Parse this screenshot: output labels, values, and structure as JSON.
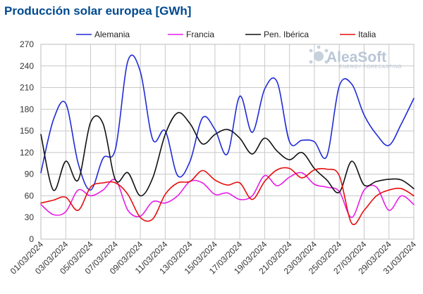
{
  "title": "Producción solar europea [GWh]",
  "logo": {
    "name": "AleaSoft",
    "tagline": "ENERGY FORECASTING"
  },
  "chart_data": {
    "type": "line",
    "x": [
      "01/03/2024",
      "02/03/2024",
      "03/03/2024",
      "04/03/2024",
      "05/03/2024",
      "06/03/2024",
      "07/03/2024",
      "08/03/2024",
      "09/03/2024",
      "10/03/2024",
      "11/03/2024",
      "12/03/2024",
      "13/03/2024",
      "14/03/2024",
      "15/03/2024",
      "16/03/2024",
      "17/03/2024",
      "18/03/2024",
      "19/03/2024",
      "20/03/2024",
      "21/03/2024",
      "22/03/2024",
      "23/03/2024",
      "24/03/2024",
      "25/03/2024",
      "26/03/2024",
      "27/03/2024",
      "28/03/2024",
      "29/03/2024",
      "30/03/2024",
      "31/03/2024"
    ],
    "xtick_labels": [
      "01/03/2024",
      "03/03/2024",
      "05/03/2024",
      "07/03/2024",
      "09/03/2024",
      "11/03/2024",
      "13/03/2024",
      "15/03/2024",
      "17/03/2024",
      "19/03/2024",
      "21/03/2024",
      "23/03/2024",
      "25/03/2024",
      "27/03/2024",
      "29/03/2024",
      "31/03/2024"
    ],
    "yticks": [
      0,
      30,
      60,
      90,
      120,
      150,
      180,
      210,
      240,
      270
    ],
    "ylim": [
      0,
      270
    ],
    "grid": true,
    "legend_position": "top",
    "series": [
      {
        "name": "Alemania",
        "color": "#1f2bd6",
        "values": [
          92,
          165,
          188,
          105,
          68,
          112,
          125,
          247,
          232,
          138,
          150,
          88,
          108,
          168,
          152,
          118,
          198,
          148,
          208,
          218,
          135,
          137,
          135,
          115,
          212,
          215,
          172,
          145,
          130,
          160,
          195
        ]
      },
      {
        "name": "Francia",
        "color": "#e61ee6",
        "values": [
          48,
          34,
          38,
          68,
          60,
          68,
          82,
          40,
          32,
          52,
          50,
          60,
          80,
          78,
          62,
          64,
          55,
          60,
          88,
          74,
          86,
          92,
          76,
          72,
          66,
          30,
          68,
          72,
          40,
          60,
          48
        ]
      },
      {
        "name": "Pen. Ibérica",
        "color": "#111111",
        "values": [
          145,
          68,
          108,
          82,
          162,
          160,
          82,
          92,
          60,
          85,
          145,
          175,
          160,
          132,
          145,
          152,
          140,
          118,
          140,
          122,
          110,
          120,
          98,
          82,
          65,
          108,
          75,
          80,
          83,
          82,
          70
        ]
      },
      {
        "name": "Italia",
        "color": "#e60e0e",
        "values": [
          50,
          54,
          58,
          40,
          72,
          78,
          78,
          62,
          30,
          28,
          62,
          78,
          80,
          95,
          82,
          75,
          78,
          55,
          80,
          96,
          98,
          85,
          96,
          97,
          88,
          22,
          40,
          60,
          68,
          70,
          60
        ]
      }
    ]
  }
}
